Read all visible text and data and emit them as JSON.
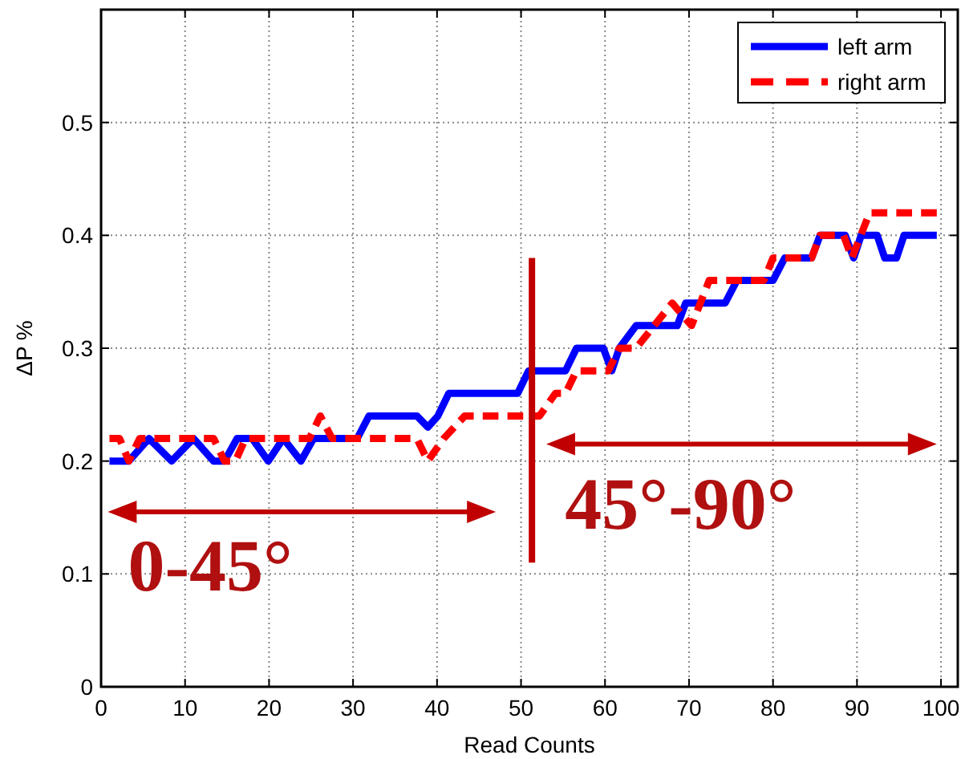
{
  "chart_data": {
    "type": "line",
    "xlabel": "Read Counts",
    "ylabel": "ΔP %",
    "xlim": [
      0,
      102
    ],
    "xticks": [
      0,
      10,
      20,
      30,
      40,
      50,
      60,
      70,
      80,
      90,
      100
    ],
    "ylim": [
      0,
      0.6
    ],
    "yticks": [
      0,
      0.1,
      0.2,
      0.3,
      0.4,
      0.5
    ],
    "grid": true,
    "legend": "top right",
    "series": [
      {
        "name": "left arm",
        "color": "#0000ff",
        "line_style": "solid",
        "x": [
          1,
          3.3,
          5.7,
          8.4,
          11,
          13.4,
          14.7,
          16.2,
          18,
          19.9,
          21.7,
          23.8,
          25.3,
          30.5,
          31.9,
          37.6,
          38.9,
          40.1,
          41.4,
          49.6,
          50.9,
          55.3,
          56.6,
          59.8,
          60.8,
          61.7,
          63.7,
          68.6,
          69.6,
          74.3,
          75.7,
          80,
          81.4,
          84.6,
          85.6,
          88.6,
          89.6,
          90.5,
          92.4,
          93.3,
          94.7,
          95.6,
          99.5
        ],
        "values": [
          0.2,
          0.2,
          0.22,
          0.2,
          0.22,
          0.2,
          0.2,
          0.22,
          0.22,
          0.2,
          0.22,
          0.2,
          0.22,
          0.22,
          0.24,
          0.24,
          0.23,
          0.24,
          0.26,
          0.26,
          0.28,
          0.28,
          0.3,
          0.3,
          0.28,
          0.3,
          0.32,
          0.32,
          0.34,
          0.34,
          0.36,
          0.36,
          0.38,
          0.38,
          0.4,
          0.4,
          0.38,
          0.4,
          0.4,
          0.38,
          0.38,
          0.4,
          0.4
        ]
      },
      {
        "name": "right arm",
        "color": "#ff0000",
        "line_style": "dashed",
        "x": [
          1,
          2.2,
          3.3,
          4.6,
          13.4,
          14.7,
          16,
          17.2,
          24.8,
          26.1,
          27.5,
          37.6,
          38.9,
          40.8,
          43.3,
          52.2,
          54.1,
          55.3,
          56.6,
          60.4,
          61.7,
          63.7,
          68,
          70.3,
          72.4,
          78.9,
          80,
          84.6,
          85.6,
          88.4,
          89.4,
          91.5,
          99.5
        ],
        "values": [
          0.22,
          0.22,
          0.2,
          0.22,
          0.22,
          0.2,
          0.2,
          0.22,
          0.22,
          0.24,
          0.22,
          0.22,
          0.2,
          0.22,
          0.24,
          0.24,
          0.26,
          0.26,
          0.28,
          0.28,
          0.3,
          0.3,
          0.34,
          0.32,
          0.36,
          0.36,
          0.38,
          0.38,
          0.4,
          0.4,
          0.38,
          0.42,
          0.42
        ]
      }
    ],
    "ref_lines": [
      {
        "axis": "x",
        "value": 51.3,
        "color": "#c00000"
      }
    ],
    "annotations": [
      "0-45°",
      "45°-90°"
    ]
  }
}
